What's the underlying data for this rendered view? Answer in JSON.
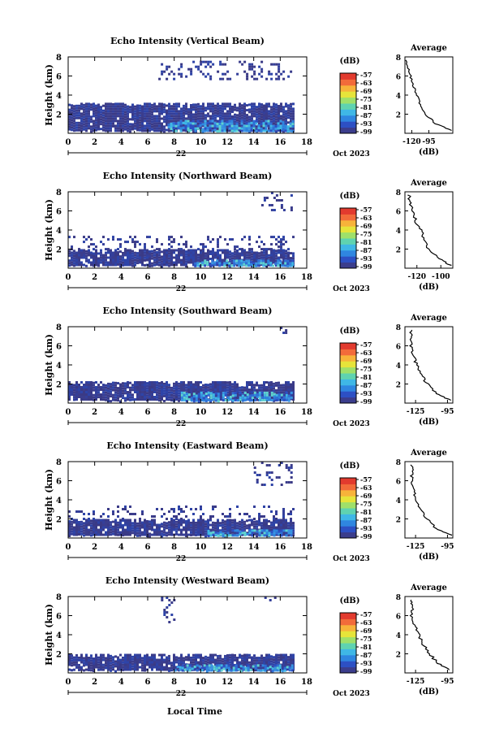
{
  "figure": {
    "xlabel": "Local Time",
    "ylabel": "Height (km)",
    "day_label": "22",
    "date_label": "Oct 2023",
    "colorbar_unit": "(dB)",
    "profile_title": "Average",
    "profile_xlabel": "(dB)",
    "x_ticks": [
      "0",
      "2",
      "4",
      "6",
      "8",
      "10",
      "12",
      "14",
      "16",
      "18"
    ],
    "y_ticks": [
      "2",
      "4",
      "6",
      "8"
    ],
    "colorbar_ticks": [
      "-57",
      "-63",
      "-69",
      "-75",
      "-81",
      "-87",
      "-93",
      "-99"
    ],
    "colormap": [
      "#3b3d8c",
      "#2d50c4",
      "#2f86e0",
      "#3fb7e6",
      "#5fd3b0",
      "#9fe06a",
      "#e6e43a",
      "#f7b33a",
      "#f26b3a",
      "#e23a2e"
    ]
  },
  "chart_data": [
    {
      "type": "heatmap",
      "title": "Echo Intensity (Vertical Beam)",
      "x_range": [
        0,
        18
      ],
      "y_range": [
        0,
        8
      ],
      "data_end_hour": 16.9,
      "layers": [
        {
          "kind": "band",
          "from_km": 0.3,
          "to_km": 3.2,
          "level": "weak"
        },
        {
          "kind": "band",
          "from_km": 0.3,
          "to_km": 1.4,
          "level": "medium",
          "start_hour": 7.5
        },
        {
          "kind": "patches",
          "from_km": 5.6,
          "to_km": 7.6,
          "start_hour": 6.8,
          "end_hour": 16.9,
          "level": "weak"
        }
      ],
      "profile": {
        "x_range": [
          -130,
          -60
        ],
        "x_ticks": [
          "-120",
          "-95"
        ],
        "y": [
          0.3,
          1,
          2,
          3,
          4,
          5,
          6,
          7,
          7.8
        ],
        "x": [
          -62,
          -85,
          -100,
          -108,
          -112,
          -118,
          -122,
          -126,
          -128
        ]
      }
    },
    {
      "type": "heatmap",
      "title": "Echo Intensity (Northward Beam)",
      "x_range": [
        0,
        18
      ],
      "y_range": [
        0,
        8
      ],
      "data_end_hour": 16.9,
      "layers": [
        {
          "kind": "band",
          "from_km": 0.3,
          "to_km": 2.0,
          "level": "weak"
        },
        {
          "kind": "band",
          "from_km": 0.3,
          "to_km": 0.9,
          "level": "medium",
          "start_hour": 9.5
        },
        {
          "kind": "patches",
          "from_km": 2.0,
          "to_km": 3.4,
          "start_hour": 0,
          "end_hour": 16.9,
          "level": "weak"
        },
        {
          "kind": "patches",
          "from_km": 6.0,
          "to_km": 8.0,
          "start_hour": 14.2,
          "end_hour": 16.9,
          "level": "weak"
        }
      ],
      "profile": {
        "x_range": [
          -130,
          -90
        ],
        "x_ticks": [
          "-120",
          "-100"
        ],
        "y": [
          0.3,
          1,
          2,
          3,
          4,
          5,
          6,
          7,
          7.8
        ],
        "x": [
          -92,
          -102,
          -110,
          -114,
          -117,
          -121,
          -124,
          -126,
          -127
        ]
      }
    },
    {
      "type": "heatmap",
      "title": "Echo Intensity (Southward Beam)",
      "x_range": [
        0,
        18
      ],
      "y_range": [
        0,
        8
      ],
      "data_end_hour": 16.9,
      "layers": [
        {
          "kind": "band",
          "from_km": 0.3,
          "to_km": 2.3,
          "level": "weak"
        },
        {
          "kind": "band",
          "from_km": 0.3,
          "to_km": 1.2,
          "level": "medium",
          "start_hour": 8.5
        },
        {
          "kind": "patches",
          "from_km": 7.0,
          "to_km": 8.0,
          "start_hour": 15.8,
          "end_hour": 16.9,
          "level": "weak"
        }
      ],
      "profile": {
        "x_range": [
          -135,
          -90
        ],
        "x_ticks": [
          "-125",
          "-95"
        ],
        "y": [
          0.3,
          1,
          2,
          3,
          4,
          5,
          6,
          7,
          7.8
        ],
        "x": [
          -92,
          -105,
          -114,
          -120,
          -124,
          -127,
          -130,
          -128,
          -130
        ]
      }
    },
    {
      "type": "heatmap",
      "title": "Echo Intensity (Eastward Beam)",
      "x_range": [
        0,
        18
      ],
      "y_range": [
        0,
        8
      ],
      "data_end_hour": 16.9,
      "layers": [
        {
          "kind": "band",
          "from_km": 0.3,
          "to_km": 2.0,
          "level": "weak"
        },
        {
          "kind": "band",
          "from_km": 0.3,
          "to_km": 0.9,
          "level": "medium",
          "start_hour": 10.5
        },
        {
          "kind": "patches",
          "from_km": 2.0,
          "to_km": 3.4,
          "start_hour": 0,
          "end_hour": 16.9,
          "level": "weak"
        },
        {
          "kind": "patches",
          "from_km": 5.5,
          "to_km": 8.0,
          "start_hour": 14.0,
          "end_hour": 16.9,
          "level": "weak"
        }
      ],
      "profile": {
        "x_range": [
          -135,
          -90
        ],
        "x_ticks": [
          "-125",
          "-95"
        ],
        "y": [
          0.3,
          1,
          2,
          3,
          4,
          5,
          6,
          7,
          7.8
        ],
        "x": [
          -92,
          -106,
          -114,
          -120,
          -124,
          -127,
          -129,
          -128,
          -129
        ]
      }
    },
    {
      "type": "heatmap",
      "title": "Echo Intensity (Westward Beam)",
      "x_range": [
        0,
        18
      ],
      "y_range": [
        0,
        8
      ],
      "data_end_hour": 16.9,
      "layers": [
        {
          "kind": "band",
          "from_km": 0.3,
          "to_km": 2.0,
          "level": "weak"
        },
        {
          "kind": "band",
          "from_km": 0.3,
          "to_km": 0.9,
          "level": "medium",
          "start_hour": 8.0
        },
        {
          "kind": "patches",
          "from_km": 5.0,
          "to_km": 8.0,
          "start_hour": 7.0,
          "end_hour": 8.0,
          "level": "weak"
        },
        {
          "kind": "patches",
          "from_km": 7.2,
          "to_km": 8.0,
          "start_hour": 14.8,
          "end_hour": 15.6,
          "level": "weak"
        }
      ],
      "profile": {
        "x_range": [
          -135,
          -90
        ],
        "x_ticks": [
          "-125",
          "-95"
        ],
        "y": [
          0.3,
          1,
          2,
          3,
          4,
          5,
          6,
          7,
          7.8
        ],
        "x": [
          -92,
          -104,
          -112,
          -118,
          -122,
          -126,
          -129,
          -128,
          -130
        ]
      }
    }
  ]
}
